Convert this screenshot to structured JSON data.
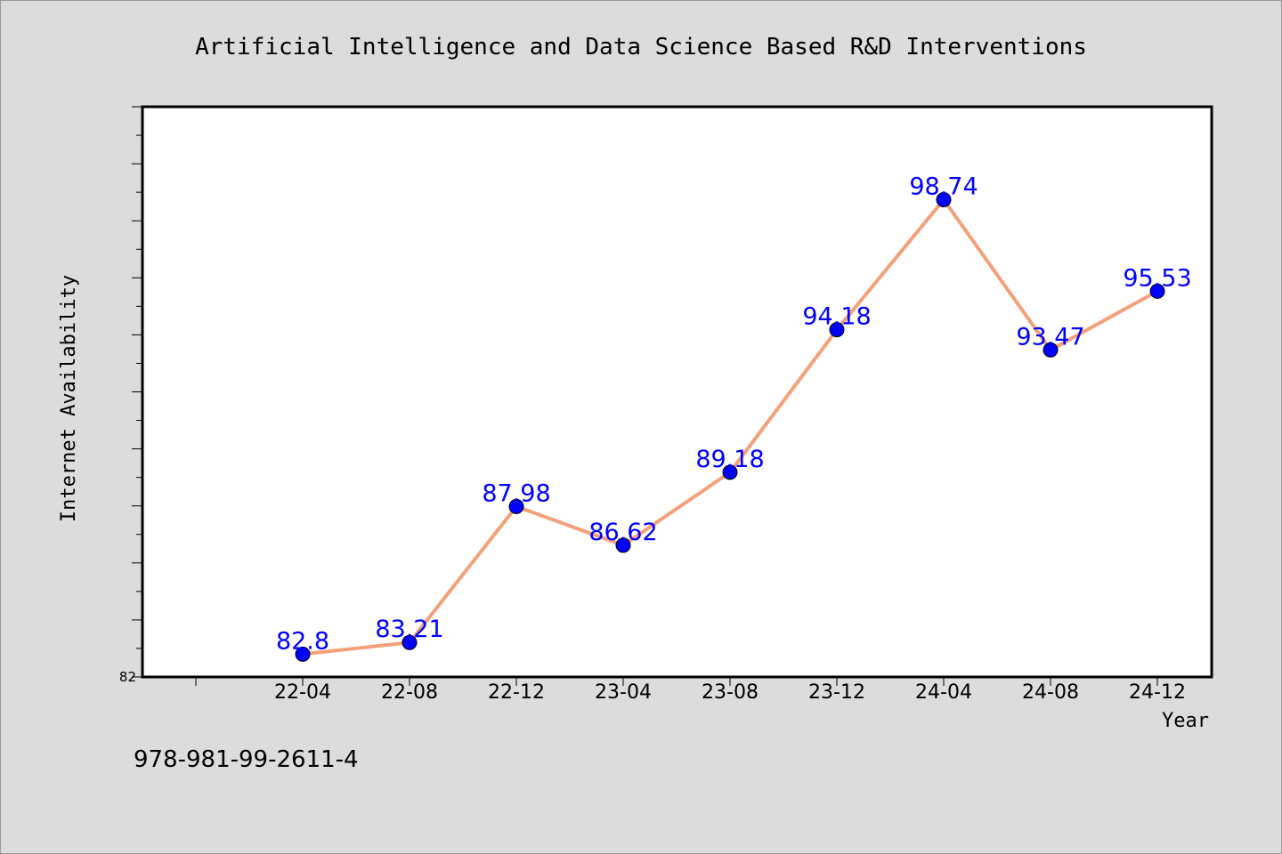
{
  "chart_data": {
    "type": "line",
    "title": "Artificial Intelligence and Data Science Based R&D Interventions",
    "xlabel": "Year",
    "ylabel": "Internet Availability",
    "categories": [
      "22-04",
      "22-08",
      "22-12",
      "23-04",
      "23-08",
      "23-12",
      "24-04",
      "24-08",
      "24-12"
    ],
    "series": [
      {
        "values": [
          82.8,
          83.21,
          87.98,
          86.62,
          89.18,
          94.18,
          98.74,
          93.47,
          95.53
        ],
        "labels": [
          "82.8",
          "83.21",
          "87.98",
          "86.62",
          "89.18",
          "94.18",
          "98.74",
          "93.47",
          "95.53"
        ]
      }
    ],
    "ylim": [
      82,
      102
    ],
    "y_tick_labels": [
      "82"
    ],
    "grid": false,
    "colors": {
      "line": "#f4a07a",
      "marker": "#0000ff",
      "label": "#0000ff",
      "background": "#dcdcdc",
      "plot_area": "#ffffff"
    }
  },
  "footer": {
    "code": "978-981-99-2611-4"
  }
}
